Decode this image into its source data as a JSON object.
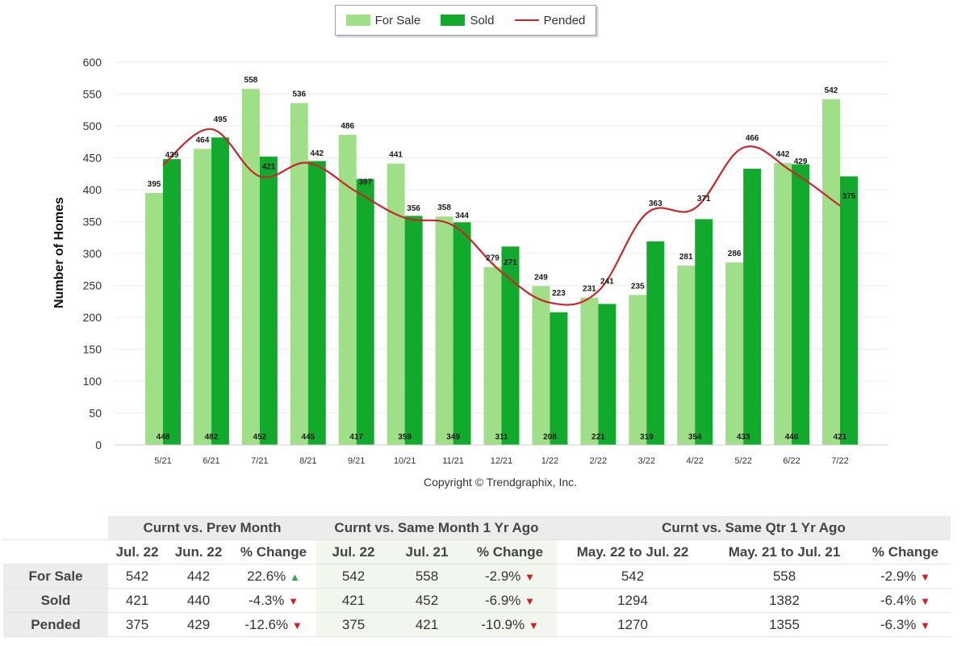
{
  "chart_data": {
    "type": "bar",
    "categories": [
      "5/21",
      "6/21",
      "7/21",
      "8/21",
      "9/21",
      "10/21",
      "11/21",
      "12/21",
      "1/22",
      "2/22",
      "3/22",
      "4/22",
      "5/22",
      "6/22",
      "7/22"
    ],
    "series": [
      {
        "name": "For Sale",
        "type": "bar",
        "color": "#9fdf88",
        "values": [
          395,
          464,
          558,
          536,
          486,
          441,
          358,
          279,
          249,
          231,
          235,
          281,
          286,
          442,
          542
        ]
      },
      {
        "name": "Sold",
        "type": "bar",
        "color": "#12aa2c",
        "values": [
          448,
          482,
          452,
          445,
          417,
          359,
          349,
          311,
          208,
          221,
          319,
          354,
          433,
          440,
          421
        ]
      },
      {
        "name": "Pended",
        "type": "line",
        "color": "#c9272d",
        "values": [
          439,
          495,
          421,
          442,
          397,
          356,
          344,
          271,
          223,
          241,
          363,
          371,
          466,
          429,
          375
        ]
      }
    ],
    "ylabel": "Number of Homes",
    "xlabel": "",
    "ylim": [
      0,
      600
    ],
    "yticks": [
      0,
      50,
      100,
      150,
      200,
      250,
      300,
      350,
      400,
      450,
      500,
      550,
      600
    ],
    "grid": true,
    "legend_position": "top-center",
    "copyright": "Copyright © Trendgraphix, Inc."
  },
  "table": {
    "groups": [
      "Curnt vs. Prev Month",
      "Curnt vs. Same Month 1 Yr Ago",
      "Curnt vs. Same Qtr 1 Yr Ago"
    ],
    "subheaders": [
      "Jul. 22",
      "Jun. 22",
      "% Change",
      "Jul. 22",
      "Jul. 21",
      "% Change",
      "May. 22 to Jul. 22",
      "May. 21 to Jul. 21",
      "% Change"
    ],
    "rows": [
      {
        "label": "For Sale",
        "cells": [
          "542",
          "442",
          "22.6%",
          "542",
          "558",
          "-2.9%",
          "542",
          "558",
          "-2.9%"
        ],
        "dirs": [
          "up",
          "down",
          "down"
        ]
      },
      {
        "label": "Sold",
        "cells": [
          "421",
          "440",
          "-4.3%",
          "421",
          "452",
          "-6.9%",
          "1294",
          "1382",
          "-6.4%"
        ],
        "dirs": [
          "down",
          "down",
          "down"
        ]
      },
      {
        "label": "Pended",
        "cells": [
          "375",
          "429",
          "-12.6%",
          "375",
          "421",
          "-10.9%",
          "1270",
          "1355",
          "-6.3%"
        ],
        "dirs": [
          "down",
          "down",
          "down"
        ]
      }
    ]
  }
}
